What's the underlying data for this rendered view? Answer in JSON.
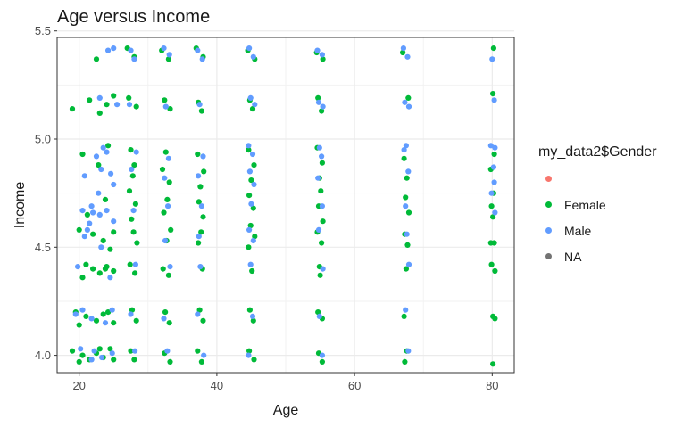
{
  "chart_data": {
    "type": "scatter",
    "title": "Age versus Income",
    "xlabel": "Age",
    "ylabel": "Income",
    "xlim": [
      16.8,
      83.2
    ],
    "ylim": [
      3.92,
      5.47
    ],
    "xticks": [
      20,
      40,
      60,
      80
    ],
    "xtick_labels": [
      "20",
      "40",
      "60",
      "80"
    ],
    "yticks": [
      4.0,
      4.5,
      5.0,
      5.5
    ],
    "ytick_labels": [
      "4.0",
      "4.5",
      "5.0",
      "5.5"
    ],
    "grid": true,
    "legend_position": "right",
    "legend_title": "my_data2$Gender",
    "x_groups": [
      22,
      27.5,
      32.5,
      37.5,
      45,
      55,
      67.5,
      80
    ],
    "series": [
      {
        "name": "",
        "color": "#F8766D",
        "points": []
      },
      {
        "name": "Female",
        "color": "#00BA38",
        "points": [
          [
            19,
            5.14
          ],
          [
            21.5,
            5.18
          ],
          [
            22.5,
            5.37
          ],
          [
            24,
            5.16
          ],
          [
            25,
            5.2
          ],
          [
            23,
            5.12
          ],
          [
            20.5,
            4.93
          ],
          [
            22.8,
            4.88
          ],
          [
            24.2,
            4.97
          ],
          [
            21.2,
            4.65
          ],
          [
            23.8,
            4.72
          ],
          [
            20,
            4.58
          ],
          [
            22,
            4.56
          ],
          [
            23.5,
            4.53
          ],
          [
            25,
            4.57
          ],
          [
            24.5,
            4.49
          ],
          [
            21,
            4.42
          ],
          [
            22,
            4.4
          ],
          [
            23,
            4.38
          ],
          [
            24,
            4.41
          ],
          [
            25,
            4.39
          ],
          [
            20.5,
            4.36
          ],
          [
            23.8,
            4.4
          ],
          [
            19.5,
            4.2
          ],
          [
            21,
            4.18
          ],
          [
            22.5,
            4.16
          ],
          [
            23.5,
            4.19
          ],
          [
            25,
            4.15
          ],
          [
            20,
            4.14
          ],
          [
            24.2,
            4.2
          ],
          [
            19,
            4.02
          ],
          [
            20.5,
            4.0
          ],
          [
            21.5,
            3.98
          ],
          [
            22.5,
            4.01
          ],
          [
            23.5,
            3.99
          ],
          [
            24.5,
            4.03
          ],
          [
            25,
            3.98
          ],
          [
            20,
            3.97
          ],
          [
            23,
            4.03
          ],
          [
            27,
            5.42
          ],
          [
            28,
            5.38
          ],
          [
            27.2,
            5.19
          ],
          [
            28.3,
            5.15
          ],
          [
            27.5,
            4.95
          ],
          [
            28,
            4.88
          ],
          [
            27.8,
            4.83
          ],
          [
            27.3,
            4.76
          ],
          [
            28.2,
            4.7
          ],
          [
            27.6,
            4.63
          ],
          [
            27.9,
            4.57
          ],
          [
            28.4,
            4.52
          ],
          [
            27.4,
            4.42
          ],
          [
            28.1,
            4.38
          ],
          [
            27.7,
            4.21
          ],
          [
            28.3,
            4.16
          ],
          [
            27.5,
            4.02
          ],
          [
            28,
            3.98
          ],
          [
            32,
            5.41
          ],
          [
            33,
            5.37
          ],
          [
            32.4,
            5.18
          ],
          [
            33.2,
            5.14
          ],
          [
            32.6,
            4.94
          ],
          [
            32.1,
            4.86
          ],
          [
            33.1,
            4.8
          ],
          [
            32.8,
            4.72
          ],
          [
            32.3,
            4.66
          ],
          [
            33.3,
            4.58
          ],
          [
            32.7,
            4.53
          ],
          [
            32.2,
            4.4
          ],
          [
            33,
            4.37
          ],
          [
            32.5,
            4.2
          ],
          [
            33.1,
            4.15
          ],
          [
            32.4,
            4.01
          ],
          [
            33.2,
            3.97
          ],
          [
            37,
            5.42
          ],
          [
            38,
            5.38
          ],
          [
            37.3,
            5.17
          ],
          [
            37.8,
            5.13
          ],
          [
            37.2,
            4.93
          ],
          [
            38.1,
            4.85
          ],
          [
            37.6,
            4.78
          ],
          [
            37.4,
            4.71
          ],
          [
            38,
            4.64
          ],
          [
            37.7,
            4.57
          ],
          [
            37.3,
            4.52
          ],
          [
            37.9,
            4.4
          ],
          [
            37.5,
            4.21
          ],
          [
            38,
            4.16
          ],
          [
            37.2,
            4.02
          ],
          [
            37.8,
            3.97
          ],
          [
            44.5,
            5.41
          ],
          [
            45.5,
            5.37
          ],
          [
            44.8,
            5.18
          ],
          [
            45.2,
            5.14
          ],
          [
            44.6,
            4.95
          ],
          [
            45.4,
            4.88
          ],
          [
            45,
            4.81
          ],
          [
            44.7,
            4.74
          ],
          [
            45.3,
            4.68
          ],
          [
            44.9,
            4.6
          ],
          [
            45.5,
            4.55
          ],
          [
            44.6,
            4.5
          ],
          [
            45.1,
            4.39
          ],
          [
            44.8,
            4.21
          ],
          [
            45.3,
            4.16
          ],
          [
            44.7,
            4.02
          ],
          [
            45.4,
            3.98
          ],
          [
            54.5,
            5.4
          ],
          [
            55.4,
            5.37
          ],
          [
            54.7,
            5.19
          ],
          [
            55.2,
            5.13
          ],
          [
            54.6,
            4.96
          ],
          [
            55.3,
            4.89
          ],
          [
            54.9,
            4.82
          ],
          [
            55.1,
            4.76
          ],
          [
            54.8,
            4.69
          ],
          [
            55.4,
            4.62
          ],
          [
            54.6,
            4.57
          ],
          [
            55.2,
            4.52
          ],
          [
            54.9,
            4.41
          ],
          [
            55,
            4.37
          ],
          [
            54.7,
            4.2
          ],
          [
            55.3,
            4.17
          ],
          [
            54.8,
            4.01
          ],
          [
            55.3,
            3.97
          ],
          [
            67,
            5.4
          ],
          [
            67.8,
            5.19
          ],
          [
            67.2,
            4.91
          ],
          [
            67.6,
            4.82
          ],
          [
            67.4,
            4.73
          ],
          [
            67.9,
            4.66
          ],
          [
            67.3,
            4.56
          ],
          [
            67.7,
            4.51
          ],
          [
            67.5,
            4.4
          ],
          [
            67.2,
            4.18
          ],
          [
            67.6,
            4.02
          ],
          [
            67.3,
            3.97
          ],
          [
            80.2,
            5.42
          ],
          [
            80.1,
            5.21
          ],
          [
            80.3,
            4.93
          ],
          [
            79.8,
            4.86
          ],
          [
            80.2,
            4.75
          ],
          [
            79.9,
            4.69
          ],
          [
            80.1,
            4.64
          ],
          [
            79.8,
            4.52
          ],
          [
            80.3,
            4.52
          ],
          [
            79.9,
            4.42
          ],
          [
            80.4,
            4.39
          ],
          [
            80.1,
            4.18
          ],
          [
            80.4,
            4.17
          ],
          [
            80.1,
            3.96
          ]
        ]
      },
      {
        "name": "Male",
        "color": "#619CFF",
        "points": [
          [
            25,
            5.42
          ],
          [
            24.2,
            5.41
          ],
          [
            23,
            5.19
          ],
          [
            25.5,
            5.16
          ],
          [
            23.5,
            4.96
          ],
          [
            24,
            4.94
          ],
          [
            22.5,
            4.92
          ],
          [
            20.8,
            4.83
          ],
          [
            23.2,
            4.86
          ],
          [
            24.6,
            4.84
          ],
          [
            22.8,
            4.75
          ],
          [
            25,
            4.79
          ],
          [
            21.8,
            4.69
          ],
          [
            20.5,
            4.67
          ],
          [
            22,
            4.66
          ],
          [
            23,
            4.65
          ],
          [
            24,
            4.67
          ],
          [
            21.5,
            4.61
          ],
          [
            21.2,
            4.58
          ],
          [
            20.8,
            4.55
          ],
          [
            23.2,
            4.5
          ],
          [
            25,
            4.62
          ],
          [
            19.8,
            4.41
          ],
          [
            24.5,
            4.36
          ],
          [
            19.5,
            4.19
          ],
          [
            20.5,
            4.21
          ],
          [
            21.8,
            4.17
          ],
          [
            23.8,
            4.15
          ],
          [
            24.8,
            4.21
          ],
          [
            20.2,
            4.03
          ],
          [
            22.2,
            4.02
          ],
          [
            24.8,
            4.01
          ],
          [
            21.8,
            3.98
          ],
          [
            23.3,
            3.99
          ],
          [
            27.5,
            5.41
          ],
          [
            28,
            5.37
          ],
          [
            27.3,
            5.16
          ],
          [
            28.3,
            4.94
          ],
          [
            27.6,
            4.86
          ],
          [
            27.9,
            4.67
          ],
          [
            28.2,
            4.42
          ],
          [
            27.5,
            4.19
          ],
          [
            28.1,
            4.02
          ],
          [
            32.3,
            5.42
          ],
          [
            33.1,
            5.39
          ],
          [
            32.6,
            5.15
          ],
          [
            33,
            4.91
          ],
          [
            32.4,
            4.82
          ],
          [
            32.9,
            4.69
          ],
          [
            32.5,
            4.53
          ],
          [
            33.2,
            4.41
          ],
          [
            32.3,
            4.17
          ],
          [
            32.8,
            4.02
          ],
          [
            37.2,
            5.41
          ],
          [
            37.9,
            5.37
          ],
          [
            37.5,
            5.16
          ],
          [
            38,
            4.92
          ],
          [
            37.3,
            4.83
          ],
          [
            37.8,
            4.69
          ],
          [
            37.4,
            4.55
          ],
          [
            37.6,
            4.41
          ],
          [
            37.2,
            4.19
          ],
          [
            38.1,
            4.0
          ],
          [
            44.7,
            5.42
          ],
          [
            45.3,
            5.38
          ],
          [
            44.9,
            5.19
          ],
          [
            45.5,
            5.16
          ],
          [
            44.6,
            4.97
          ],
          [
            45.2,
            4.93
          ],
          [
            44.8,
            4.85
          ],
          [
            45.4,
            4.79
          ],
          [
            45,
            4.7
          ],
          [
            44.7,
            4.58
          ],
          [
            45.3,
            4.53
          ],
          [
            44.9,
            4.42
          ],
          [
            45.2,
            4.18
          ],
          [
            44.6,
            4.0
          ],
          [
            54.6,
            5.41
          ],
          [
            55.3,
            5.39
          ],
          [
            54.8,
            5.17
          ],
          [
            55.4,
            5.15
          ],
          [
            54.9,
            4.96
          ],
          [
            55.2,
            4.92
          ],
          [
            54.7,
            4.82
          ],
          [
            55.3,
            4.69
          ],
          [
            54.8,
            4.58
          ],
          [
            55.4,
            4.4
          ],
          [
            54.9,
            4.18
          ],
          [
            55.3,
            4.0
          ],
          [
            67.1,
            5.42
          ],
          [
            67.7,
            5.38
          ],
          [
            67.3,
            5.17
          ],
          [
            67.9,
            5.15
          ],
          [
            67.5,
            4.97
          ],
          [
            67.2,
            4.95
          ],
          [
            67.8,
            4.85
          ],
          [
            67.4,
            4.69
          ],
          [
            67.6,
            4.56
          ],
          [
            67.9,
            4.42
          ],
          [
            67.4,
            4.21
          ],
          [
            67.8,
            4.02
          ],
          [
            80,
            5.37
          ],
          [
            80.3,
            5.18
          ],
          [
            79.8,
            4.97
          ],
          [
            80.4,
            4.96
          ],
          [
            80.2,
            4.87
          ],
          [
            80.3,
            4.8
          ],
          [
            79.9,
            4.75
          ],
          [
            80.4,
            4.66
          ]
        ]
      },
      {
        "name": "NA",
        "color": "#737373",
        "points": []
      }
    ]
  }
}
